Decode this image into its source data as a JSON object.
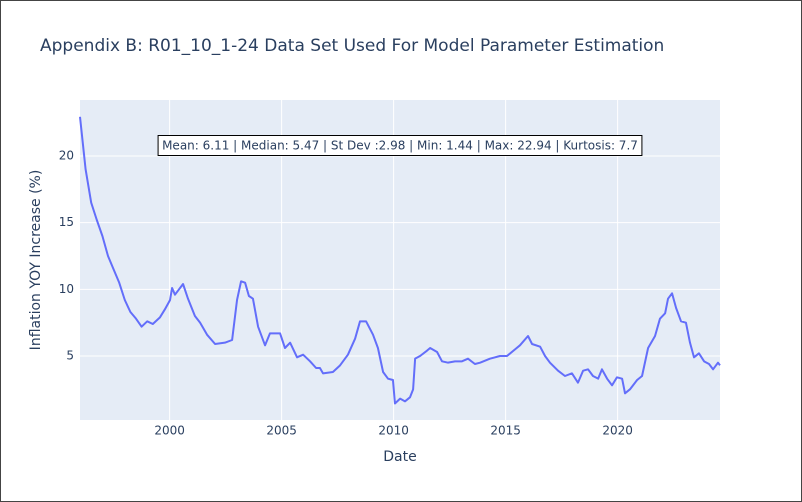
{
  "chart_data": {
    "type": "line",
    "title": "Appendix B: R01_10_1-24 Data Set Used For Model Parameter Estimation",
    "annotation": "Mean: 6.11 | Median: 5.47 | St Dev :2.98 | Min: 1.44 | Max: 22.94 | Kurtosis: 7.7",
    "x_label": "Date",
    "y_label": "Inflation YOY Increase (%)",
    "x": [
      1996.0,
      1996.25,
      1996.5,
      1996.75,
      1997.0,
      1997.25,
      1997.5,
      1997.75,
      1998.0,
      1998.25,
      1998.5,
      1998.75,
      1999.0,
      1999.25,
      1999.57,
      1999.79,
      2000.02,
      2000.11,
      2000.24,
      2000.6,
      2000.82,
      2001.13,
      2001.36,
      2001.67,
      2002.03,
      2002.47,
      2002.79,
      2003.01,
      2003.19,
      2003.37,
      2003.54,
      2003.72,
      2003.95,
      2004.26,
      2004.48,
      2004.93,
      2005.15,
      2005.38,
      2005.69,
      2005.96,
      2006.27,
      2006.54,
      2006.71,
      2006.85,
      2007.29,
      2007.61,
      2007.96,
      2008.28,
      2008.5,
      2008.77,
      2009.08,
      2009.3,
      2009.53,
      2009.75,
      2009.97,
      2010.06,
      2010.29,
      2010.51,
      2010.73,
      2010.87,
      2010.96,
      2011.18,
      2011.49,
      2011.63,
      2011.94,
      2012.16,
      2012.43,
      2012.74,
      2013.05,
      2013.32,
      2013.63,
      2013.86,
      2014.3,
      2014.75,
      2015.06,
      2015.42,
      2015.64,
      2016.0,
      2016.18,
      2016.54,
      2016.76,
      2016.98,
      2017.34,
      2017.65,
      2017.96,
      2018.23,
      2018.46,
      2018.68,
      2018.9,
      2019.13,
      2019.3,
      2019.53,
      2019.75,
      2019.97,
      2020.2,
      2020.33,
      2020.55,
      2020.87,
      2021.09,
      2021.36,
      2021.67,
      2021.89,
      2022.12,
      2022.25,
      2022.43,
      2022.61,
      2022.83,
      2023.05,
      2023.23,
      2023.41,
      2023.63,
      2023.86,
      2024.08,
      2024.26,
      2024.48,
      2024.57
    ],
    "series": [
      {
        "name": "Inflation",
        "color": "#636efa",
        "values": [
          22.94,
          19,
          16.5,
          15.2,
          14,
          12.5,
          11.5,
          10.5,
          9.2,
          8.3,
          7.8,
          7.2,
          7.6,
          7.4,
          7.9,
          8.5,
          9.2,
          10.1,
          9.6,
          10.4,
          9.3,
          8,
          7.5,
          6.6,
          5.9,
          6.0,
          6.2,
          9.2,
          10.6,
          10.5,
          9.5,
          9.3,
          7.2,
          5.8,
          6.7,
          6.7,
          5.6,
          6.0,
          4.9,
          5.1,
          4.6,
          4.1,
          4.1,
          3.7,
          3.8,
          4.3,
          5.1,
          6.3,
          7.6,
          7.6,
          6.6,
          5.6,
          3.8,
          3.3,
          3.2,
          1.44,
          1.8,
          1.6,
          1.9,
          2.5,
          4.8,
          5.0,
          5.4,
          5.6,
          5.3,
          4.6,
          4.5,
          4.6,
          4.6,
          4.8,
          4.4,
          4.5,
          4.8,
          5.0,
          5.0,
          5.5,
          5.8,
          6.5,
          5.9,
          5.7,
          5.0,
          4.5,
          3.9,
          3.5,
          3.7,
          3.0,
          3.9,
          4.0,
          3.5,
          3.3,
          4.0,
          3.3,
          2.8,
          3.4,
          3.3,
          2.2,
          2.5,
          3.2,
          3.5,
          5.6,
          6.5,
          7.8,
          8.2,
          9.3,
          9.7,
          8.6,
          7.6,
          7.5,
          6.0,
          4.9,
          5.2,
          4.6,
          4.4,
          4.0,
          4.5,
          4.3
        ]
      }
    ],
    "xlim": [
      1996.0,
      2024.57
    ],
    "ylim": [
      0.2,
      24.2
    ],
    "xticks": [
      2000,
      2005,
      2010,
      2015,
      2020
    ],
    "yticks": [
      5,
      10,
      15,
      20
    ],
    "grid": true
  }
}
